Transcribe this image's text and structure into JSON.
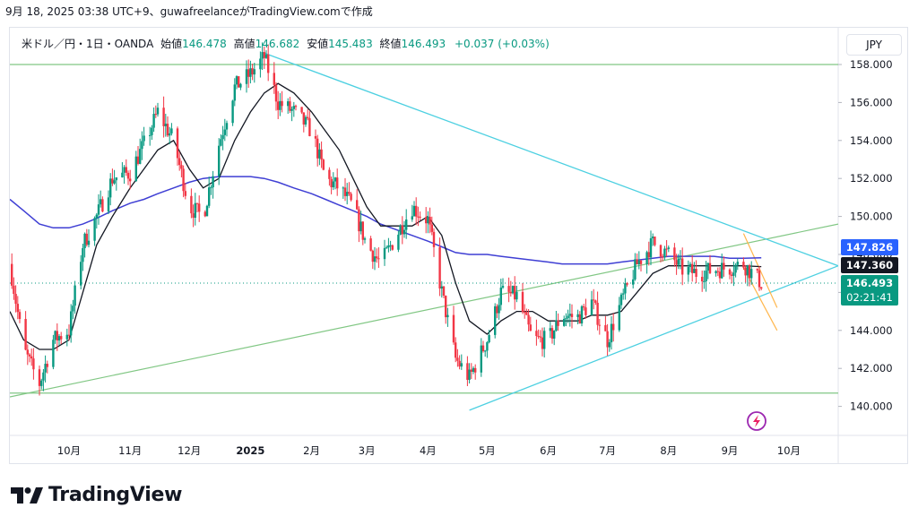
{
  "header": {
    "text": "9月 18, 2025 03:38 UTC+9、guwafreelanceがTradingView.comで作成"
  },
  "legend": {
    "symbol": "米ドル／円・1日・OANDA",
    "open_label": "始値",
    "open": "146.478",
    "high_label": "高値",
    "high": "146.682",
    "low_label": "安値",
    "low": "145.483",
    "close_label": "終値",
    "close": "146.493",
    "change": "+0.037 (+0.03%)"
  },
  "currency_button": "JPY",
  "branding": {
    "name": "TradingView"
  },
  "badges": {
    "ma200": "147.826",
    "ma20": "147.360",
    "last": "146.493",
    "countdown": "02:21:41"
  },
  "colors": {
    "up": "#089981",
    "down": "#f23645",
    "ma200": "#3f3fd4",
    "ma20": "#131722",
    "triangle": "#4dd0e1",
    "channel": "#81c784",
    "fib": "#ffb74d",
    "badge_blue": "#2962ff"
  },
  "chart_data": {
    "type": "line",
    "symbol": "USD/JPY",
    "interval": "1D",
    "ylim": [
      138.0,
      159.4
    ],
    "y_ticks": [
      "158.000",
      "156.000",
      "154.000",
      "152.000",
      "150.000",
      "148.000",
      "146.000",
      "144.000",
      "142.000",
      "140.000"
    ],
    "x_ticks": [
      "10月",
      "11月",
      "12月",
      "2025",
      "2月",
      "3月",
      "4月",
      "5月",
      "6月",
      "7月",
      "8月",
      "9月",
      "10月"
    ],
    "x": [
      "2024-09-01",
      "2024-09-08",
      "2024-09-16",
      "2024-09-23",
      "2024-10-01",
      "2024-10-08",
      "2024-10-15",
      "2024-10-23",
      "2024-11-01",
      "2024-11-08",
      "2024-11-15",
      "2024-11-23",
      "2024-12-01",
      "2024-12-08",
      "2024-12-16",
      "2024-12-24",
      "2025-01-01",
      "2025-01-08",
      "2025-01-15",
      "2025-01-23",
      "2025-02-01",
      "2025-02-08",
      "2025-02-15",
      "2025-02-22",
      "2025-03-01",
      "2025-03-08",
      "2025-03-16",
      "2025-03-24",
      "2025-04-01",
      "2025-04-08",
      "2025-04-15",
      "2025-04-22",
      "2025-05-01",
      "2025-05-08",
      "2025-05-16",
      "2025-05-24",
      "2025-06-01",
      "2025-06-08",
      "2025-06-16",
      "2025-06-23",
      "2025-07-01",
      "2025-07-08",
      "2025-07-16",
      "2025-07-24",
      "2025-08-01",
      "2025-08-08",
      "2025-08-16",
      "2025-08-24",
      "2025-09-01",
      "2025-09-08",
      "2025-09-17"
    ],
    "series": [
      {
        "values": [
          147.5,
          143.0,
          141.2,
          143.5,
          144.0,
          148.5,
          150.0,
          152.0,
          152.3,
          153.8,
          155.5,
          154.0,
          150.5,
          150.0,
          153.8,
          156.8,
          157.5,
          158.4,
          156.0,
          155.5,
          154.5,
          152.0,
          151.5,
          150.5,
          148.5,
          147.5,
          149.0,
          150.5,
          149.8,
          146.0,
          142.5,
          141.5,
          143.5,
          146.0,
          145.8,
          143.5,
          143.5,
          144.8,
          144.7,
          145.5,
          143.5,
          145.5,
          147.5,
          148.6,
          148.0,
          147.2,
          147.0,
          147.2,
          147.3,
          147.5,
          146.5
        ]
      },
      {
        "values": [
          145.0,
          143.5,
          143.0,
          143.0,
          143.5,
          146.0,
          148.5,
          150.0,
          151.5,
          152.5,
          153.5,
          154.0,
          152.5,
          151.5,
          152.0,
          154.0,
          155.5,
          156.5,
          157.0,
          156.5,
          155.5,
          154.5,
          153.5,
          152.0,
          150.5,
          149.5,
          149.5,
          149.5,
          150.0,
          149.0,
          146.5,
          144.5,
          143.8,
          144.5,
          145.0,
          145.0,
          144.5,
          144.5,
          144.5,
          144.8,
          144.8,
          145.0,
          146.0,
          147.0,
          147.4,
          147.4,
          147.4,
          147.4,
          147.4,
          147.4,
          147.36
        ]
      },
      {
        "values": [
          150.9,
          150.3,
          149.6,
          149.4,
          149.4,
          149.6,
          149.9,
          150.3,
          150.7,
          150.9,
          151.2,
          151.5,
          151.8,
          152.0,
          152.1,
          152.1,
          152.1,
          152.0,
          151.8,
          151.5,
          151.2,
          150.9,
          150.6,
          150.3,
          150.0,
          149.6,
          149.3,
          149.0,
          148.7,
          148.4,
          148.1,
          148.0,
          148.0,
          147.9,
          147.8,
          147.7,
          147.6,
          147.5,
          147.5,
          147.5,
          147.5,
          147.6,
          147.7,
          147.8,
          147.9,
          147.9,
          147.9,
          147.9,
          147.8,
          147.8,
          147.826
        ]
      }
    ]
  }
}
